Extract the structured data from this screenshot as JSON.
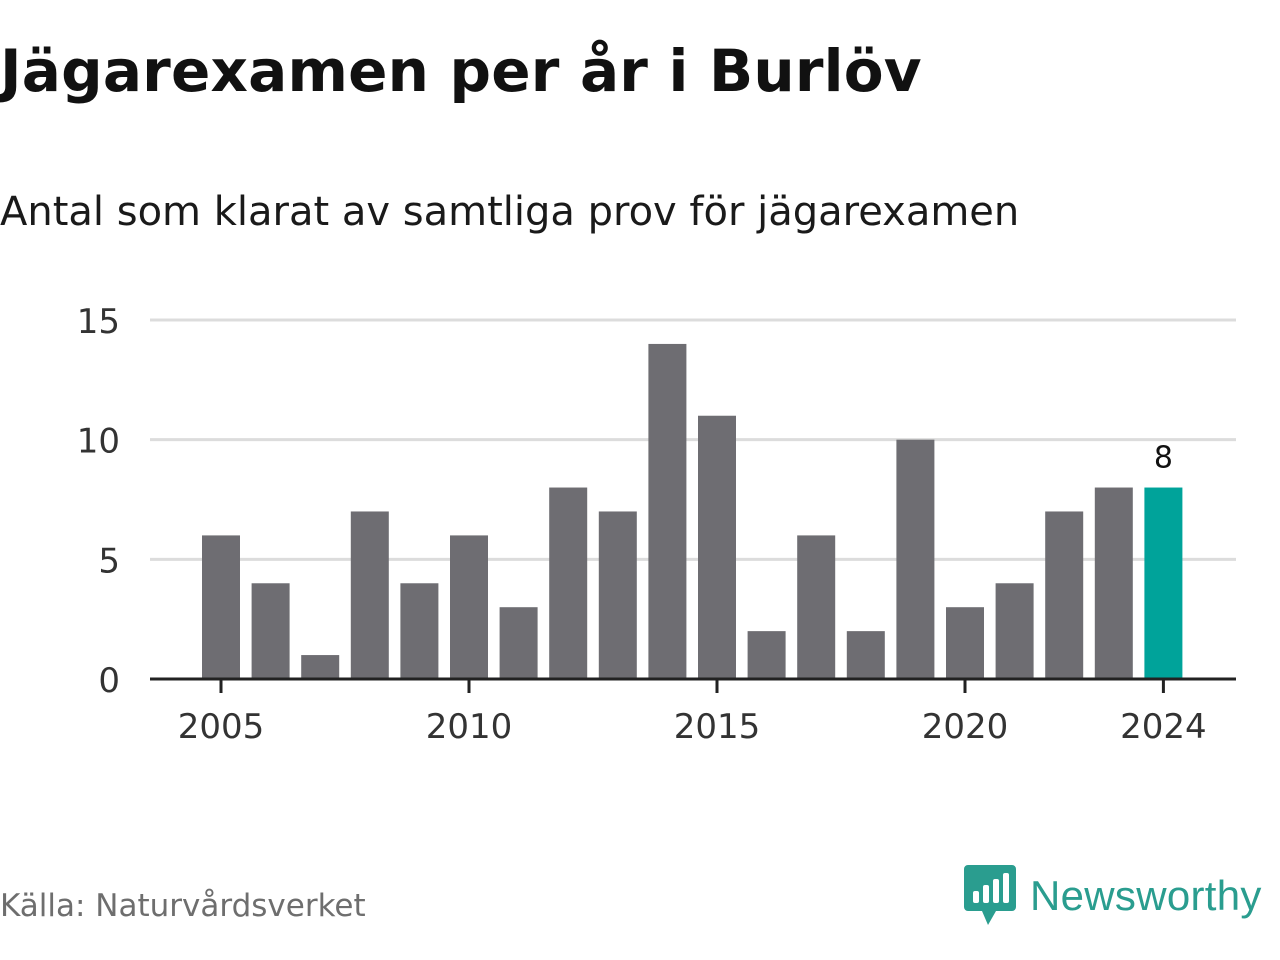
{
  "title": "Jägarexamen per år i Burlöv",
  "subtitle": "Antal som klarat av samtliga prov för jägarexamen",
  "source": "Källa: Naturvårdsverket",
  "brand": {
    "name": "Newsworthy",
    "icon": "newsworthy-logo-icon",
    "color": "#2a9d8f"
  },
  "chart_data": {
    "type": "bar",
    "x": [
      2005,
      2006,
      2007,
      2008,
      2009,
      2010,
      2011,
      2012,
      2013,
      2014,
      2015,
      2016,
      2017,
      2018,
      2019,
      2020,
      2021,
      2022,
      2023,
      2024
    ],
    "values": [
      6,
      4,
      1,
      7,
      4,
      6,
      3,
      8,
      7,
      14,
      11,
      2,
      6,
      2,
      10,
      3,
      4,
      7,
      8,
      8
    ],
    "ylim": [
      0,
      15
    ],
    "yticks": [
      "0",
      "5",
      "10",
      "15"
    ],
    "xticks": [
      "2005",
      "2010",
      "2015",
      "2020",
      "2024"
    ],
    "grid": true,
    "highlight": {
      "x": 2024,
      "label": "8",
      "color": "#00a39a"
    },
    "bar_color": "#6e6d72"
  }
}
